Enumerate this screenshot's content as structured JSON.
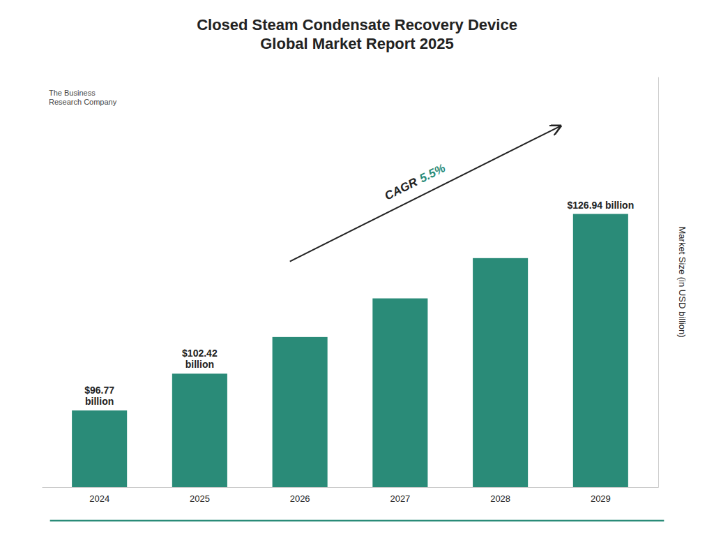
{
  "chart_data": {
    "type": "bar",
    "title": "Closed Steam Condensate Recovery Device\nGlobal Market Report 2025",
    "y_label": "Market Size (in USD billion)",
    "categories": [
      "2024",
      "2025",
      "2026",
      "2027",
      "2028",
      "2029"
    ],
    "values": [
      96.77,
      102.42,
      108.05,
      113.98,
      120.16,
      126.94
    ],
    "value_labels": [
      "$96.77\nbillion",
      "$102.42\nbillion",
      null,
      null,
      null,
      "$126.94 billion"
    ],
    "data_labels": true,
    "color": "#2a8b78",
    "ylim": [
      85,
      148
    ],
    "yticks": [],
    "tick_labels": "x",
    "grid": false,
    "annotations": [
      "CAGR",
      "5.5%",
      "The Business\nResearch Company"
    ]
  }
}
